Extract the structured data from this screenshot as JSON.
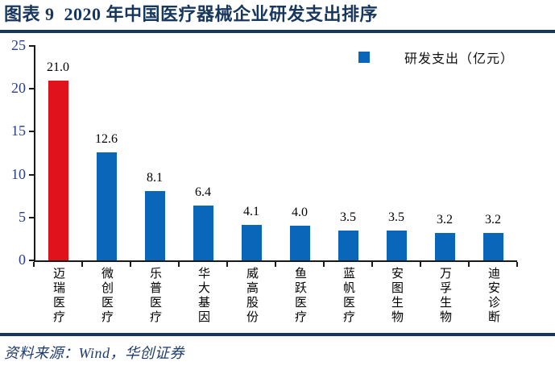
{
  "header": {
    "title": "图表 9  2020 年中国医疗器械企业研发支出排序"
  },
  "legend": {
    "label": "研发支出（亿元）"
  },
  "footer": {
    "source": "资料来源：Wind，华创证券"
  },
  "colors": {
    "title_navy": "#17375e",
    "rule_navy": "#17375e",
    "source_navy": "#1f3c6e",
    "bar_blue": "#0a66b8",
    "bar_red": "#e0121b",
    "axis_line": "#1a1a1a",
    "ytick_label_blue": "#2b3f8c"
  },
  "chart_data": {
    "type": "bar",
    "title": "2020 年中国医疗器械企业研发支出排序",
    "categories": [
      "迈瑞医疗",
      "微创医疗",
      "乐普医疗",
      "华大基因",
      "威高股份",
      "鱼跃医疗",
      "蓝帆医疗",
      "安图生物",
      "万孚生物",
      "迪安诊断"
    ],
    "values": [
      21.0,
      12.6,
      8.1,
      6.4,
      4.1,
      4.0,
      3.5,
      3.5,
      3.2,
      3.2
    ],
    "value_labels": [
      "21.0",
      "12.6",
      "8.1",
      "6.4",
      "4.1",
      "4.0",
      "3.5",
      "3.5",
      "3.2",
      "3.2"
    ],
    "bar_colors": [
      "#e0121b",
      "#0a66b8",
      "#0a66b8",
      "#0a66b8",
      "#0a66b8",
      "#0a66b8",
      "#0a66b8",
      "#0a66b8",
      "#0a66b8",
      "#0a66b8"
    ],
    "highlight_index": 0,
    "legend": [
      "研发支出（亿元）"
    ],
    "legend_position": "top-right",
    "xlabel": "",
    "ylabel": "",
    "unit": "亿元",
    "ylim": [
      0,
      25
    ],
    "yticks": [
      0,
      5,
      10,
      15,
      20,
      25
    ],
    "grid": false
  }
}
